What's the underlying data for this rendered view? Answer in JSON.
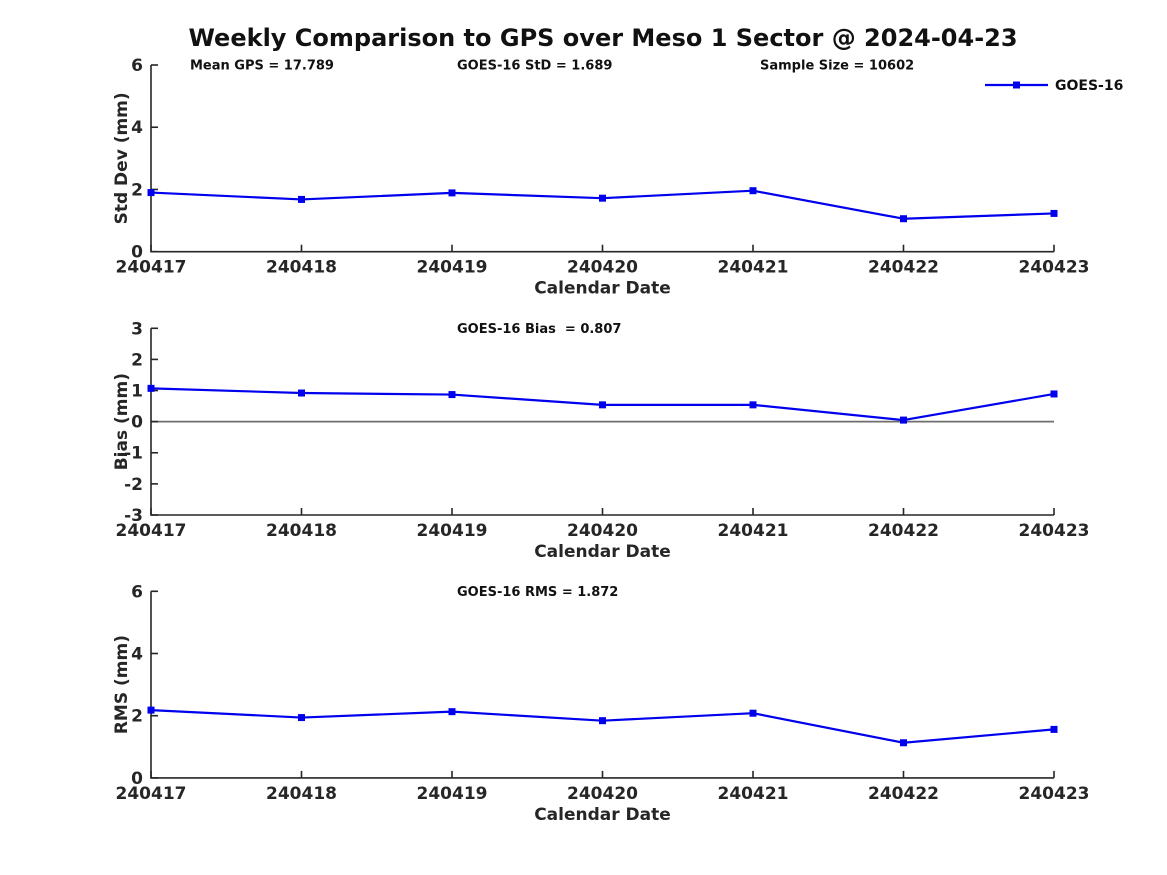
{
  "title": "Weekly Comparison to GPS over Meso 1 Sector @ 2024-04-23",
  "legend": {
    "label": "GOES-16"
  },
  "colors": {
    "line": "#0000EE",
    "text": "#262626",
    "zero_line": "#6E6E6E",
    "background": "#FFFFFF"
  },
  "categories": [
    "240417",
    "240418",
    "240419",
    "240420",
    "240421",
    "240422",
    "240423"
  ],
  "chart_data": [
    {
      "type": "line",
      "name": "std-dev",
      "ylabel": "Std Dev (mm)",
      "xlabel": "Calendar Date",
      "ylim": [
        0,
        6
      ],
      "yticks": [
        0,
        2,
        4,
        6
      ],
      "grid": false,
      "zero_line": false,
      "legend_position": "top-right-outside",
      "categories": [
        "240417",
        "240418",
        "240419",
        "240420",
        "240421",
        "240422",
        "240423"
      ],
      "series": [
        {
          "name": "GOES-16",
          "values": [
            1.9,
            1.68,
            1.89,
            1.72,
            1.96,
            1.06,
            1.23
          ]
        }
      ],
      "annotations": [
        {
          "text": "Mean GPS = 17.789",
          "x": 190
        },
        {
          "text": "GOES-16 StD = 1.689",
          "x": 457
        },
        {
          "text": "Sample Size = 10602",
          "x": 760
        }
      ]
    },
    {
      "type": "line",
      "name": "bias",
      "ylabel": "Bias (mm)",
      "xlabel": "Calendar Date",
      "ylim": [
        -3,
        3
      ],
      "yticks": [
        -3,
        -2,
        -1,
        0,
        1,
        2,
        3
      ],
      "grid": false,
      "zero_line": true,
      "categories": [
        "240417",
        "240418",
        "240419",
        "240420",
        "240421",
        "240422",
        "240423"
      ],
      "series": [
        {
          "name": "GOES-16",
          "values": [
            1.07,
            0.92,
            0.87,
            0.54,
            0.54,
            0.05,
            0.89
          ]
        }
      ],
      "annotations": [
        {
          "text": "GOES-16 Bias  = 0.807",
          "x": 457
        }
      ]
    },
    {
      "type": "line",
      "name": "rms",
      "ylabel": "RMS (mm)",
      "xlabel": "Calendar Date",
      "ylim": [
        0,
        6
      ],
      "yticks": [
        0,
        2,
        4,
        6
      ],
      "grid": false,
      "zero_line": false,
      "categories": [
        "240417",
        "240418",
        "240419",
        "240420",
        "240421",
        "240422",
        "240423"
      ],
      "series": [
        {
          "name": "GOES-16",
          "values": [
            2.18,
            1.94,
            2.13,
            1.84,
            2.08,
            1.13,
            1.56
          ]
        }
      ],
      "annotations": [
        {
          "text": "GOES-16 RMS = 1.872",
          "x": 457
        }
      ]
    }
  ]
}
